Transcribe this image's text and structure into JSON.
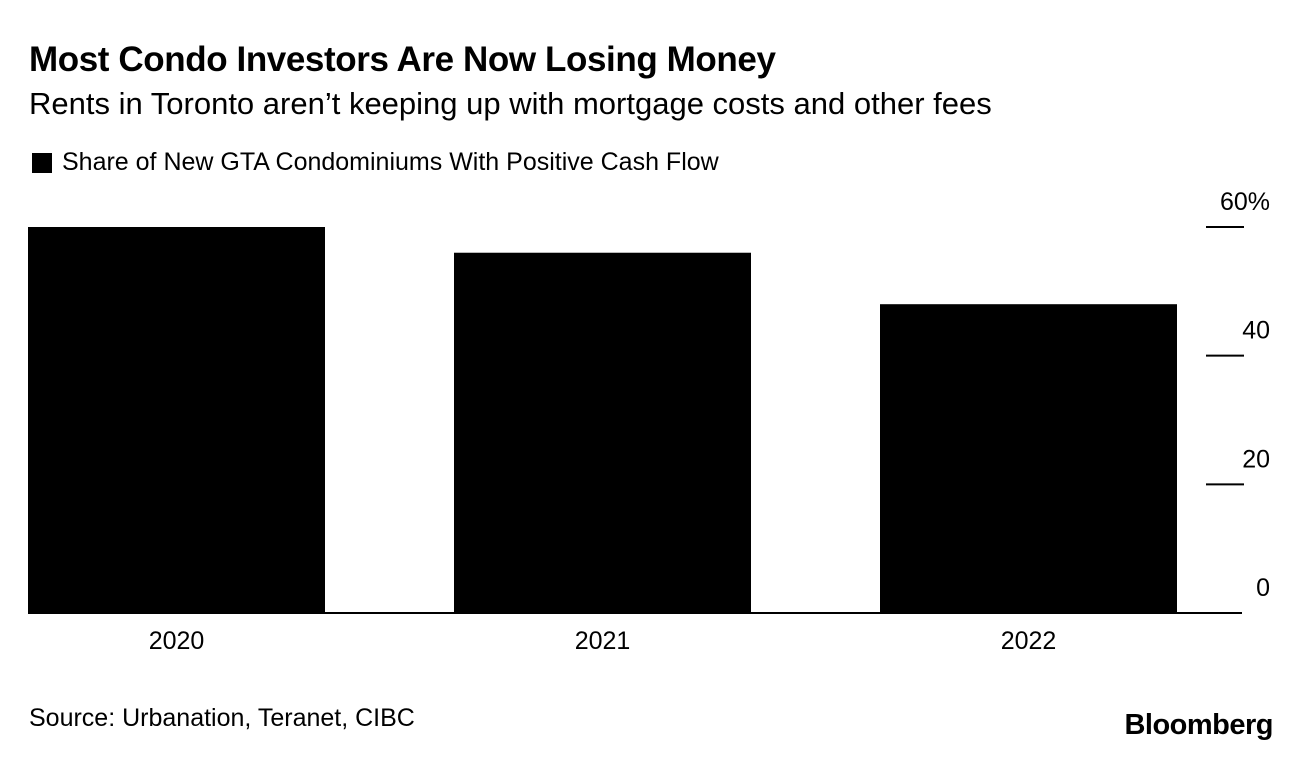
{
  "header": {
    "title": "Most Condo Investors Are Now Losing Money",
    "subtitle": "Rents in Toronto aren’t keeping up with mortgage costs and other fees"
  },
  "footer": {
    "source": "Source: Urbanation, Teranet, CIBC",
    "brand": "Bloomberg"
  },
  "colors": {
    "bar": "#000000",
    "axis": "#000000",
    "background": "#ffffff"
  },
  "chart_data": {
    "type": "bar",
    "title": "Most Condo Investors Are Now Losing Money",
    "subtitle": "Rents in Toronto aren’t keeping up with mortgage costs and other fees",
    "categories": [
      "2020",
      "2021",
      "2022"
    ],
    "series": [
      {
        "name": "Share of New GTA Condominiums With Positive Cash Flow",
        "values": [
          60,
          56,
          48
        ]
      }
    ],
    "ylim": [
      0,
      60
    ],
    "yticks": [
      0,
      20,
      40,
      60
    ],
    "ytick_labels": [
      "0",
      "20",
      "40",
      "60%"
    ],
    "y_axis_position": "right",
    "xlabel": "",
    "ylabel": "",
    "grid": false,
    "legend_position": "top-left"
  }
}
